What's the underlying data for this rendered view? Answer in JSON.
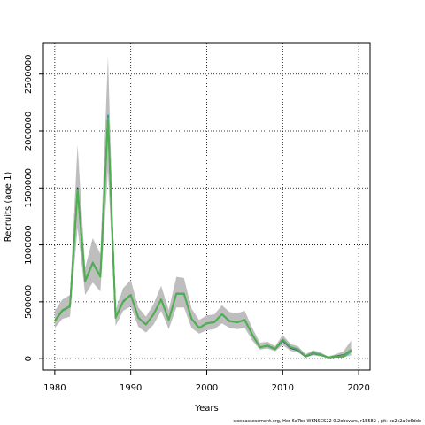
{
  "chart_data": {
    "type": "line",
    "title": "",
    "xlabel": "Years",
    "ylabel": "Recruits (age 1)",
    "xlim": [
      1978.5,
      2021.5
    ],
    "ylim": [
      -100000,
      2770000
    ],
    "xticks": [
      1980,
      1990,
      2000,
      2010,
      2020
    ],
    "xtick_labels": [
      "1980",
      "1990",
      "2000",
      "2010",
      "2020"
    ],
    "yticks": [
      0,
      500000,
      1000000,
      1500000,
      2000000,
      2500000
    ],
    "ytick_labels": [
      "0",
      "500000",
      "1000000",
      "1500000",
      "2000000",
      "2500000"
    ],
    "grid": true,
    "grid_style": "dotted",
    "x": [
      1980,
      1981,
      1982,
      1983,
      1984,
      1985,
      1986,
      1987,
      1988,
      1989,
      1990,
      1991,
      1992,
      1993,
      1994,
      1995,
      1996,
      1997,
      1998,
      1999,
      2000,
      2001,
      2002,
      2003,
      2004,
      2005,
      2006,
      2007,
      2008,
      2009,
      2010,
      2011,
      2012,
      2013,
      2014,
      2015,
      2016,
      2017,
      2018,
      2019
    ],
    "interval": {
      "color": "#bebebe",
      "lower": [
        270000,
        350000,
        370000,
        1150000,
        560000,
        670000,
        590000,
        1650000,
        290000,
        420000,
        460000,
        280000,
        230000,
        300000,
        420000,
        260000,
        450000,
        450000,
        270000,
        220000,
        250000,
        260000,
        310000,
        270000,
        260000,
        270000,
        160000,
        80000,
        90000,
        65000,
        120000,
        70000,
        55000,
        10000,
        30000,
        20000,
        5000,
        8000,
        10000,
        30000
      ],
      "upper": [
        420000,
        520000,
        560000,
        1880000,
        800000,
        1060000,
        920000,
        2660000,
        430000,
        620000,
        690000,
        450000,
        370000,
        480000,
        640000,
        430000,
        720000,
        710000,
        440000,
        340000,
        380000,
        390000,
        470000,
        410000,
        400000,
        420000,
        270000,
        140000,
        150000,
        110000,
        210000,
        130000,
        110000,
        40000,
        75000,
        55000,
        20000,
        40000,
        65000,
        160000
      ]
    },
    "series": [
      {
        "color": "#6b8e23",
        "values": [
          330000,
          420000,
          460000,
          1480000,
          680000,
          840000,
          720000,
          2100000,
          360000,
          500000,
          560000,
          360000,
          300000,
          390000,
          520000,
          340000,
          570000,
          570000,
          350000,
          270000,
          310000,
          320000,
          390000,
          330000,
          320000,
          340000,
          210000,
          100000,
          115000,
          85000,
          165000,
          100000,
          80000,
          20000,
          50000,
          35000,
          10000,
          20000,
          25000,
          80000
        ]
      },
      {
        "color": "#2e2a80",
        "values": [
          335000,
          425000,
          462000,
          1500000,
          685000,
          845000,
          725000,
          2130000,
          362000,
          505000,
          562000,
          362000,
          302000,
          392000,
          522000,
          342000,
          572000,
          572000,
          352000,
          272000,
          312000,
          322000,
          392000,
          332000,
          322000,
          342000,
          212000,
          100000,
          113000,
          83000,
          158000,
          95000,
          75000,
          18000,
          45000,
          32000,
          10000,
          22000,
          32000,
          70000
        ]
      },
      {
        "color": "#20a39e",
        "values": [
          328000,
          418000,
          458000,
          1470000,
          678000,
          838000,
          718000,
          2140000,
          358000,
          498000,
          558000,
          358000,
          298000,
          388000,
          518000,
          338000,
          568000,
          568000,
          348000,
          268000,
          308000,
          318000,
          388000,
          328000,
          318000,
          338000,
          208000,
          100000,
          117000,
          88000,
          172000,
          104000,
          85000,
          24000,
          52000,
          38000,
          11000,
          15000,
          15000,
          65000
        ]
      },
      {
        "color": "#f2c500",
        "values": [
          330000,
          420000,
          460000,
          1480000,
          680000,
          840000,
          720000,
          2110000,
          360000,
          500000,
          560000,
          360000,
          300000,
          390000,
          520000,
          340000,
          570000,
          570000,
          350000,
          270000,
          310000,
          320000,
          390000,
          330000,
          320000,
          340000,
          210000,
          100000,
          115000,
          85000,
          168000,
          102000,
          82000,
          22000,
          48000,
          35000,
          10000,
          18000,
          22000,
          75000
        ]
      },
      {
        "color": "#4caf50",
        "values": [
          332000,
          422000,
          461000,
          1485000,
          682000,
          842000,
          722000,
          2105000,
          361000,
          502000,
          561000,
          361000,
          301000,
          391000,
          521000,
          341000,
          571000,
          571000,
          351000,
          271000,
          311000,
          321000,
          391000,
          331000,
          321000,
          341000,
          211000,
          100000,
          116000,
          86000,
          166000,
          101000,
          81000,
          21000,
          49000,
          34000,
          10000,
          19000,
          26000,
          78000
        ]
      }
    ]
  },
  "footer": {
    "text": "stockassessment.org, Her 6a7bc WKNSCS22 0.2obsvars, r15582 , git: ec2c2a0c6dde"
  }
}
